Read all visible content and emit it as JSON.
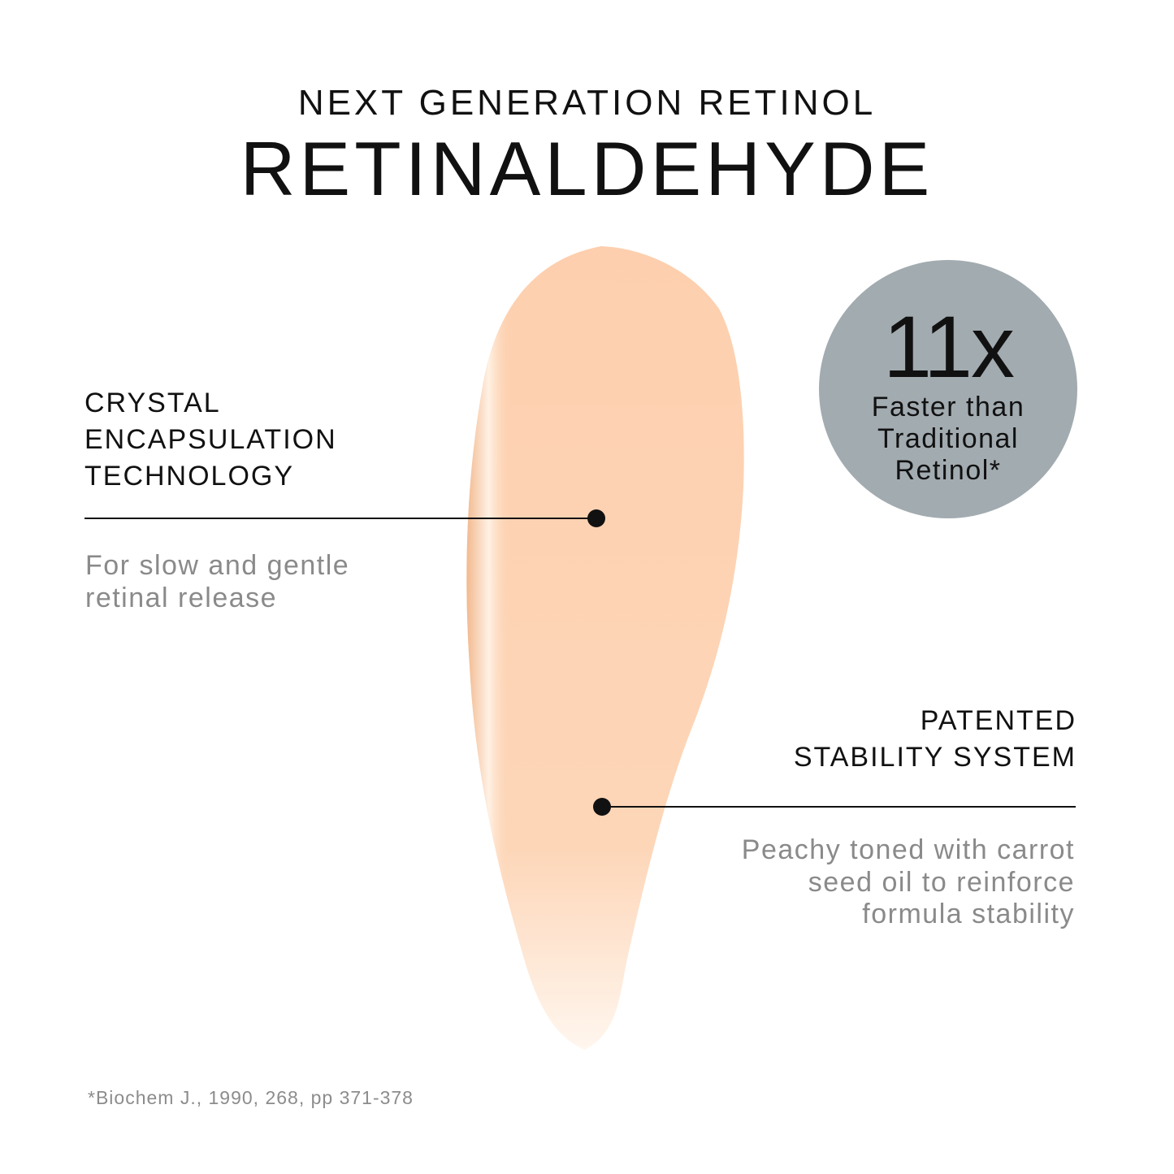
{
  "header": {
    "eyebrow": "NEXT GENERATION RETINOL",
    "title": "RETINALDEHYDE"
  },
  "badge": {
    "value": "11x",
    "lines": [
      "Faster than",
      "Traditional",
      "Retinol*"
    ],
    "color": "#a2abb0"
  },
  "callout_left": {
    "label_lines": [
      "CRYSTAL",
      "ENCAPSULATION",
      "TECHNOLOGY"
    ],
    "desc_lines": [
      "For slow and gentle",
      "retinal release"
    ]
  },
  "callout_right": {
    "label_lines": [
      "PATENTED",
      "STABILITY SYSTEM"
    ],
    "desc_lines": [
      "Peachy toned with carrot",
      "seed oil to reinforce",
      "formula stability"
    ]
  },
  "footnote": "*Biochem J., 1990, 268, pp 371-378",
  "colors": {
    "swatch": "#fdd3b2",
    "text": "#111111",
    "muted": "#8a8a8a"
  }
}
